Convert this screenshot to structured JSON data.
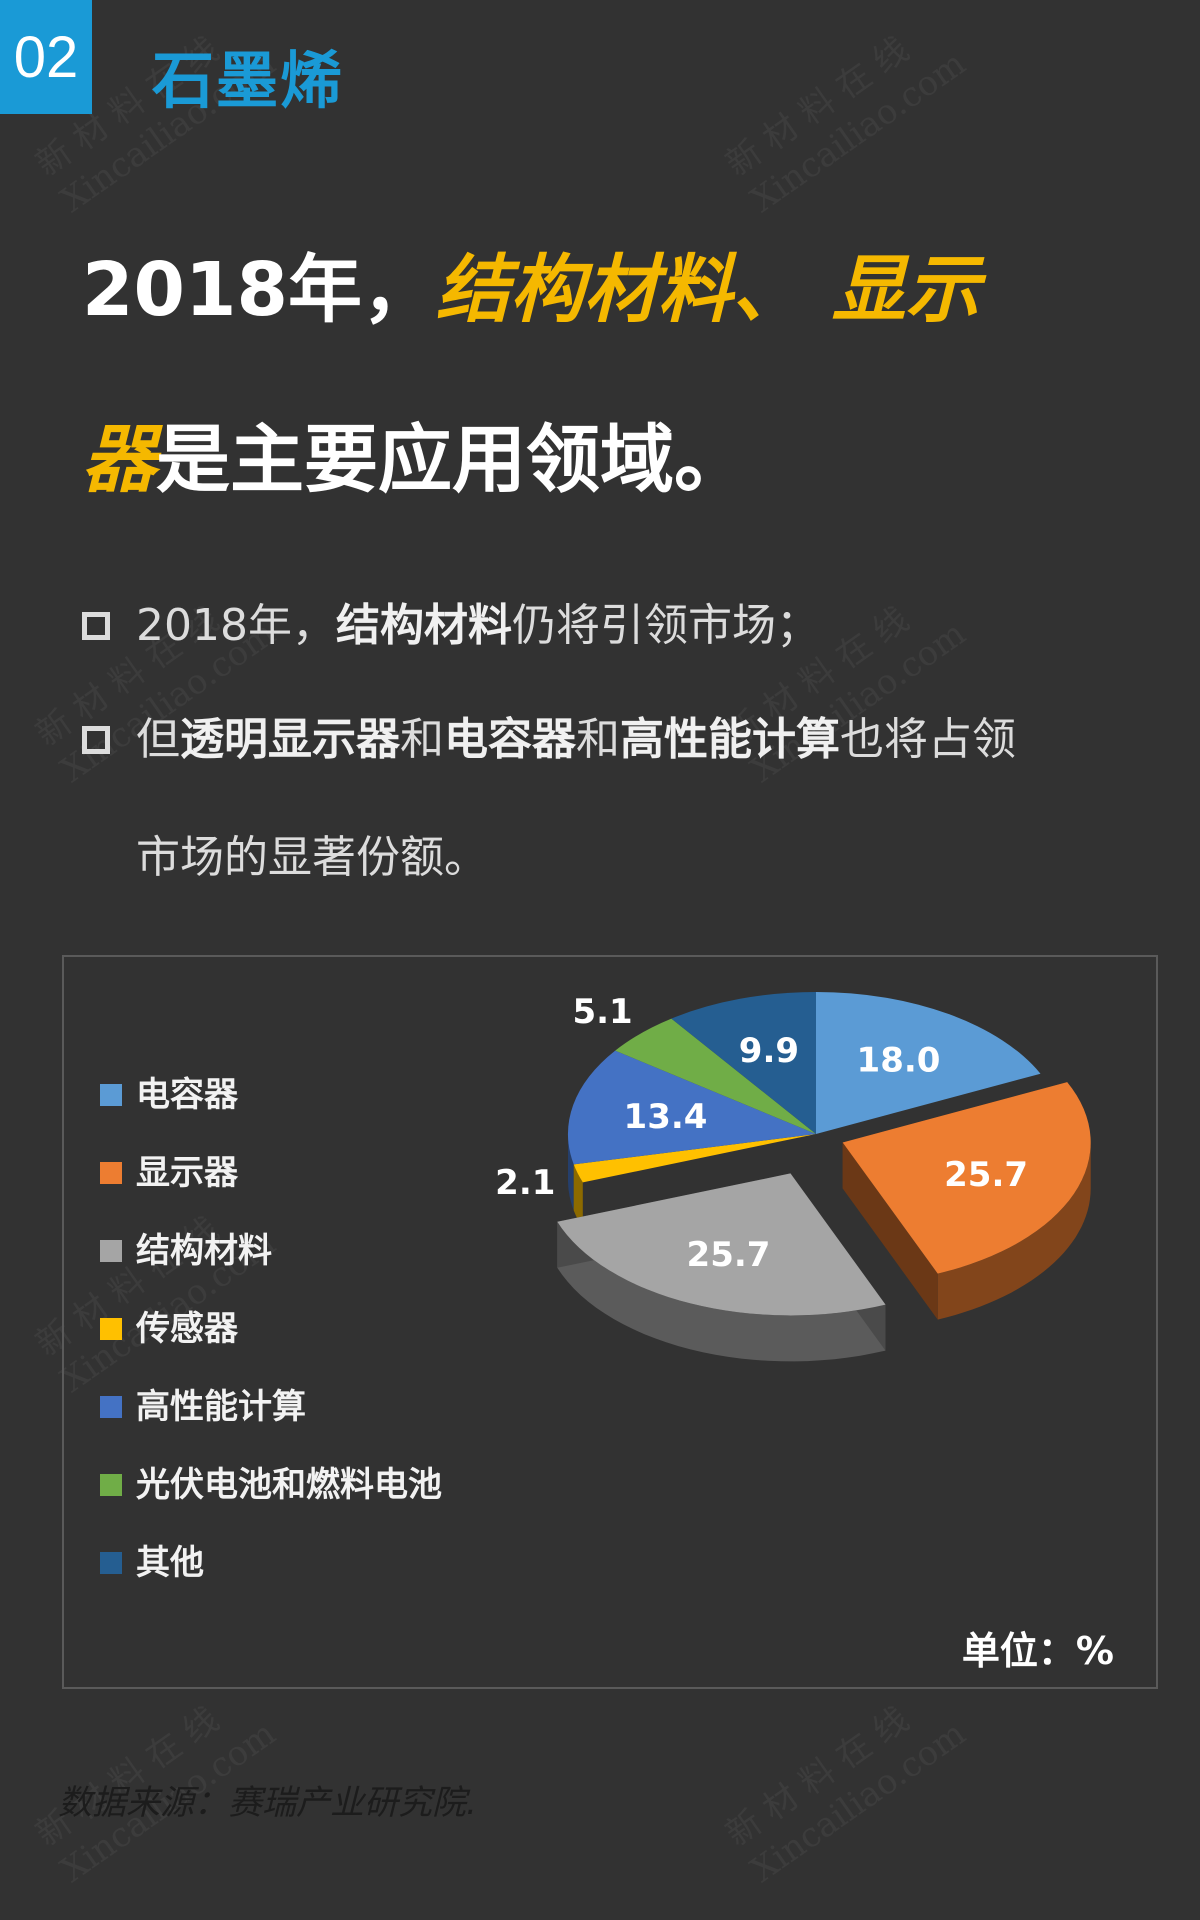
{
  "section": {
    "number": "02",
    "title": "石墨烯"
  },
  "headline": {
    "part1": "2018年，",
    "em1": "结构材料、 显示",
    "em2": "器",
    "part2": "是主要应用领域。"
  },
  "bullets": [
    {
      "segments": [
        {
          "text": "2018年，",
          "bold": false
        },
        {
          "text": "结构材料",
          "bold": true
        },
        {
          "text": "仍将引领市场；",
          "bold": false
        }
      ]
    },
    {
      "segments": [
        {
          "text": "但",
          "bold": false
        },
        {
          "text": "透明显示器",
          "bold": true
        },
        {
          "text": "和",
          "bold": false
        },
        {
          "text": "电容器",
          "bold": true
        },
        {
          "text": "和",
          "bold": false
        },
        {
          "text": "高性能计算",
          "bold": true
        },
        {
          "text": "也将占领",
          "bold": false
        }
      ]
    },
    {
      "segments": [
        {
          "text": "市场的显著份额。",
          "bold": false
        }
      ]
    }
  ],
  "chart_data": {
    "type": "pie",
    "title": "",
    "unit_label": "单位：%",
    "legend_position": "left",
    "categories": [
      "电容器",
      "显示器",
      "结构材料",
      "传感器",
      "高性能计算",
      "光伏电池和燃料电池",
      "其他"
    ],
    "values": [
      18.0,
      25.7,
      25.7,
      2.1,
      13.4,
      5.1,
      9.9
    ],
    "data_labels": [
      "18.0",
      "25.7",
      "25.7",
      "2.1",
      "13.4",
      "5.1",
      "9.9"
    ],
    "colors": [
      "#5b9bd5",
      "#ed7d31",
      "#a5a5a5",
      "#ffc000",
      "#4472c4",
      "#70ad47",
      "#255e91"
    ],
    "exploded": [
      "显示器",
      "结构材料"
    ]
  },
  "source": "数据来源：赛瑞产业研究院.",
  "watermark": {
    "cn": "新 材 料 在 线",
    "en": "Xincailiao.com"
  }
}
